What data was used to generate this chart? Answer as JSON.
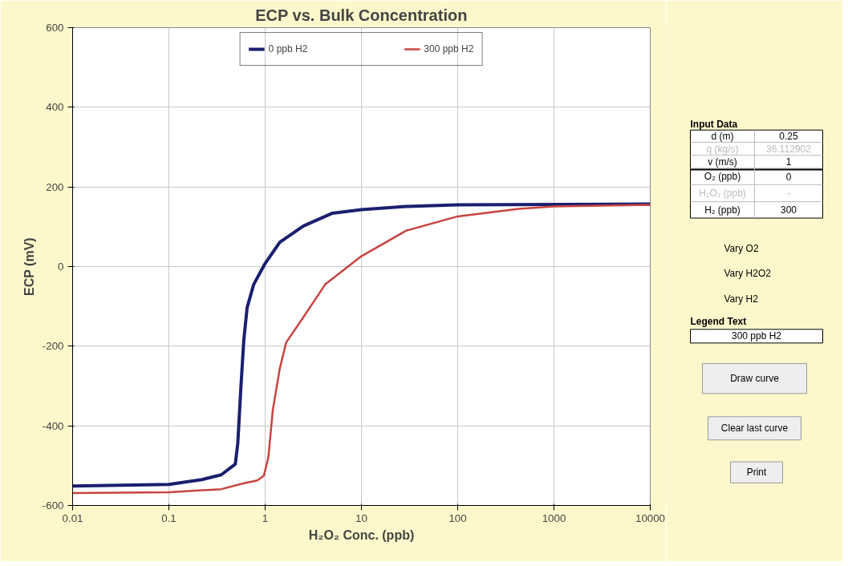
{
  "chart_data": [
    {
      "type": "line",
      "title": "ECP vs. Bulk Concentration",
      "xlabel": "H₂O₂ Conc. (ppb)",
      "ylabel": "ECP (mV)",
      "log": "x",
      "grid": true,
      "legend": "top",
      "line_style": "solid",
      "marker": "none",
      "xlim": [
        0.01,
        10000
      ],
      "xticks": [
        0.01,
        0.1,
        1,
        10,
        100,
        1000,
        10000
      ],
      "ylim": [
        -600,
        600
      ],
      "yticks": [
        -600,
        -400,
        -200,
        0,
        200,
        400,
        600
      ],
      "series": [
        {
          "name": "0 ppb H2",
          "color": "#1a1f6e",
          "x": [
            0.01,
            0.1,
            0.22,
            0.35,
            0.49,
            0.52,
            0.56,
            0.6,
            0.65,
            0.76,
            1,
            1.42,
            2.5,
            5,
            10,
            29,
            100,
            10000
          ],
          "values": [
            -551,
            -547,
            -535,
            -523,
            -496,
            -443,
            -303,
            -185,
            -103,
            -45,
            8,
            61,
            102,
            134,
            143,
            151,
            155,
            157
          ]
        },
        {
          "name": "300 ppb H2",
          "color": "#c84440",
          "x": [
            0.01,
            0.1,
            0.35,
            0.58,
            0.83,
            0.97,
            1.08,
            1.2,
            1.42,
            1.65,
            2.5,
            4.2,
            10,
            29,
            100,
            430,
            1000,
            10000
          ],
          "values": [
            -569,
            -567,
            -559,
            -545,
            -537,
            -525,
            -479,
            -361,
            -256,
            -191,
            -127,
            -45,
            26,
            90,
            126,
            145,
            151,
            155
          ]
        }
      ]
    },
    {
      "type": "other",
      "annotations": [
        "Input Data",
        "d (m)",
        "0.25",
        "q (kg/s)",
        "36.112902",
        "v (m/s)",
        "1",
        "O₂ (ppb)",
        "0",
        "H₂O₂ (ppb)",
        "-",
        "H₂ (ppb)",
        "300",
        "Vary O2",
        "Vary H2O2",
        "Vary H2",
        "Legend Text",
        "300 ppb H2",
        "Draw curve",
        "Clear last curve",
        "Print"
      ]
    }
  ]
}
